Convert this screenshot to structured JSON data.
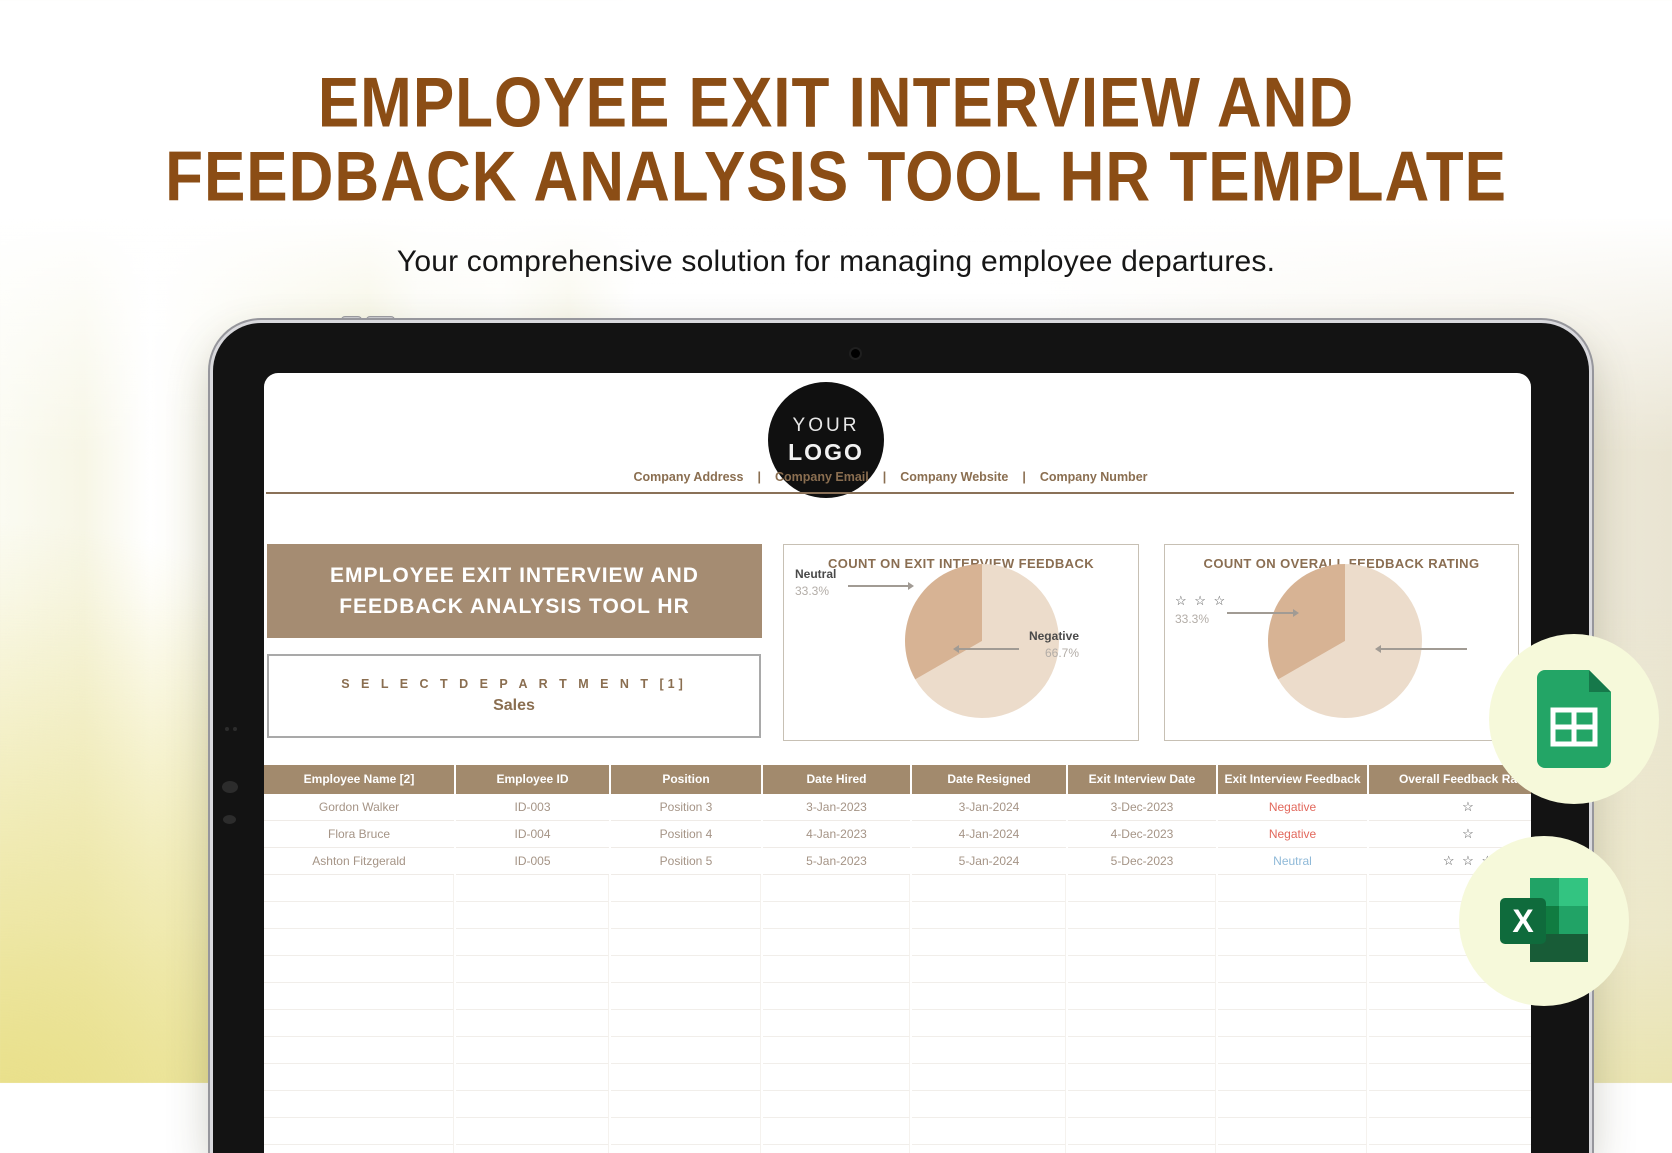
{
  "page": {
    "title_line1": "EMPLOYEE EXIT INTERVIEW AND",
    "title_line2": "FEEDBACK ANALYSIS TOOL HR TEMPLATE",
    "subtitle": "Your comprehensive solution for managing employee departures."
  },
  "logo": {
    "line1": "YOUR",
    "line2": "LOGO"
  },
  "company_bar": {
    "items": [
      "Company Address",
      "Company Email",
      "Company Website",
      "Company Number"
    ],
    "separator": "|"
  },
  "sheet": {
    "header_block": {
      "line1": "EMPLOYEE EXIT INTERVIEW AND",
      "line2": "FEEDBACK ANALYSIS TOOL HR"
    },
    "department": {
      "label": "S E L E C T   D E P A R T M E N T [1]",
      "value": "Sales"
    }
  },
  "charts": [
    {
      "title": "COUNT ON EXIT INTERVIEW FEEDBACK",
      "labels": {
        "left_name": "Neutral",
        "left_pct": "33.3%",
        "right_name": "Negative",
        "right_pct": "66.7%"
      }
    },
    {
      "title": "COUNT ON OVERALL FEEDBACK RATING",
      "labels": {
        "left_name": "☆ ☆ ☆",
        "left_pct": "33.3%"
      }
    }
  ],
  "chart_data": [
    {
      "type": "pie",
      "title": "COUNT ON EXIT INTERVIEW FEEDBACK",
      "labels": [
        "Negative",
        "Neutral"
      ],
      "values": [
        66.7,
        33.3
      ],
      "colors": [
        "#ecdccb",
        "#d7b394"
      ],
      "legend_position": "leader-lines"
    },
    {
      "type": "pie",
      "title": "COUNT ON OVERALL FEEDBACK RATING",
      "labels": [
        "☆",
        "☆ ☆ ☆"
      ],
      "values": [
        66.7,
        33.3
      ],
      "colors": [
        "#ecdccb",
        "#d7b394"
      ],
      "legend_position": "leader-lines"
    }
  ],
  "table": {
    "columns": [
      "Employee Name [2]",
      "Employee ID",
      "Position",
      "Date Hired",
      "Date Resigned",
      "Exit Interview Date",
      "Exit Interview Feedback",
      "Overall Feedback Rating"
    ],
    "rows": [
      [
        "Gordon Walker",
        "ID-003",
        "Position 3",
        "3-Jan-2023",
        "3-Jan-2024",
        "3-Dec-2023",
        "Negative",
        "☆"
      ],
      [
        "Flora Bruce",
        "ID-004",
        "Position 4",
        "4-Jan-2023",
        "4-Jan-2024",
        "4-Dec-2023",
        "Negative",
        "☆"
      ],
      [
        "Ashton Fitzgerald",
        "ID-005",
        "Position 5",
        "5-Jan-2023",
        "5-Jan-2024",
        "5-Dec-2023",
        "Neutral",
        "☆ ☆ ☆"
      ]
    ]
  },
  "badges": {
    "formats": [
      "google-sheets",
      "excel"
    ]
  },
  "colors": {
    "headline_brown": "#8b4d15",
    "taupe_block": "#a58c72",
    "table_header": "#a28a6d",
    "sheet_accent_text": "#8a6e50",
    "pie_light": "#ecdccb",
    "pie_dark": "#d7b394",
    "negative_text": "#e2685c",
    "neutral_text": "#8fb9d8",
    "badge_circle": "#f6f9da",
    "sheets_green": "#23a566",
    "excel_green": "#107c41"
  }
}
